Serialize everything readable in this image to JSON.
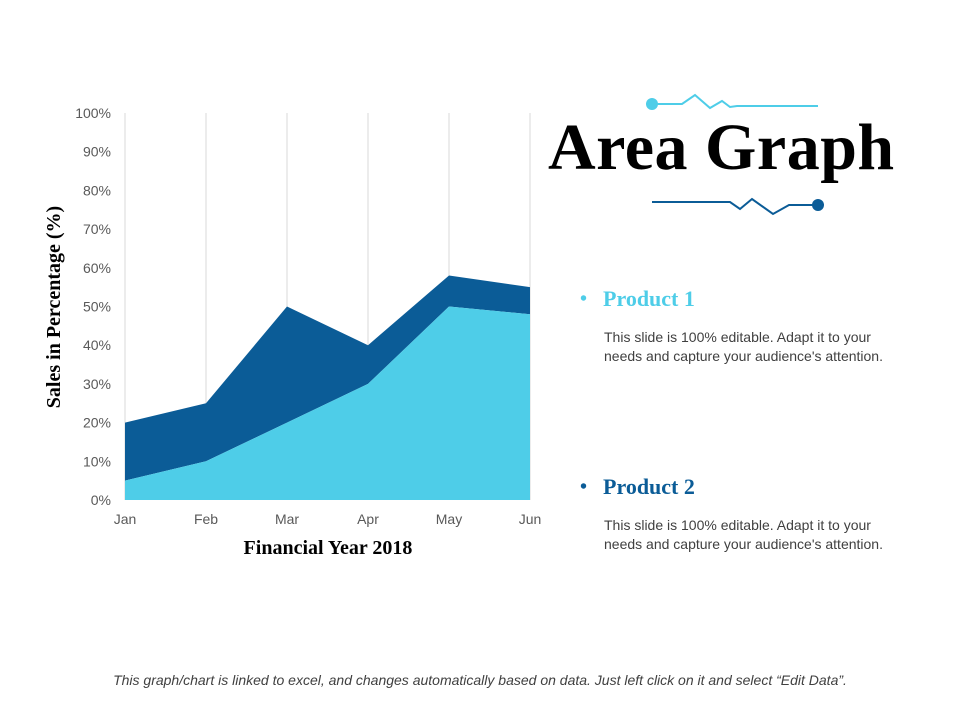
{
  "slide": {
    "title": "Area Graph",
    "footer": "This graph/chart is linked to excel, and changes automatically based on data. Just left click on it and select “Edit Data”."
  },
  "colors": {
    "product1": "#4ecde8",
    "product2": "#0b5c97",
    "accent_light": "#4ecde8",
    "accent_dark": "#0b5c97",
    "grid": "#d9d9d9",
    "text_gray": "#404040"
  },
  "products": [
    {
      "name": "Product 1",
      "description": "This slide is 100% editable. Adapt it to your needs and capture your audience's attention."
    },
    {
      "name": "Product 2",
      "description": "This slide is 100% editable. Adapt it to your needs and capture your audience's attention."
    }
  ],
  "chart_data": {
    "type": "area",
    "stacked": true,
    "categories": [
      "Jan",
      "Feb",
      "Mar",
      "Apr",
      "May",
      "Jun"
    ],
    "series": [
      {
        "name": "Product 1",
        "values": [
          5,
          10,
          20,
          30,
          50,
          48
        ]
      },
      {
        "name": "Product 2",
        "values": [
          15,
          15,
          30,
          10,
          8,
          7
        ]
      }
    ],
    "ylim": [
      0,
      100
    ],
    "yticks": [
      0,
      10,
      20,
      30,
      40,
      50,
      60,
      70,
      80,
      90,
      100
    ],
    "ytick_labels": [
      "0%",
      "10%",
      "20%",
      "30%",
      "40%",
      "50%",
      "60%",
      "70%",
      "80%",
      "90%",
      "100%"
    ],
    "xlabel": "Financial Year 2018",
    "ylabel": "Sales in Percentage (%)",
    "grid": "vertical"
  }
}
